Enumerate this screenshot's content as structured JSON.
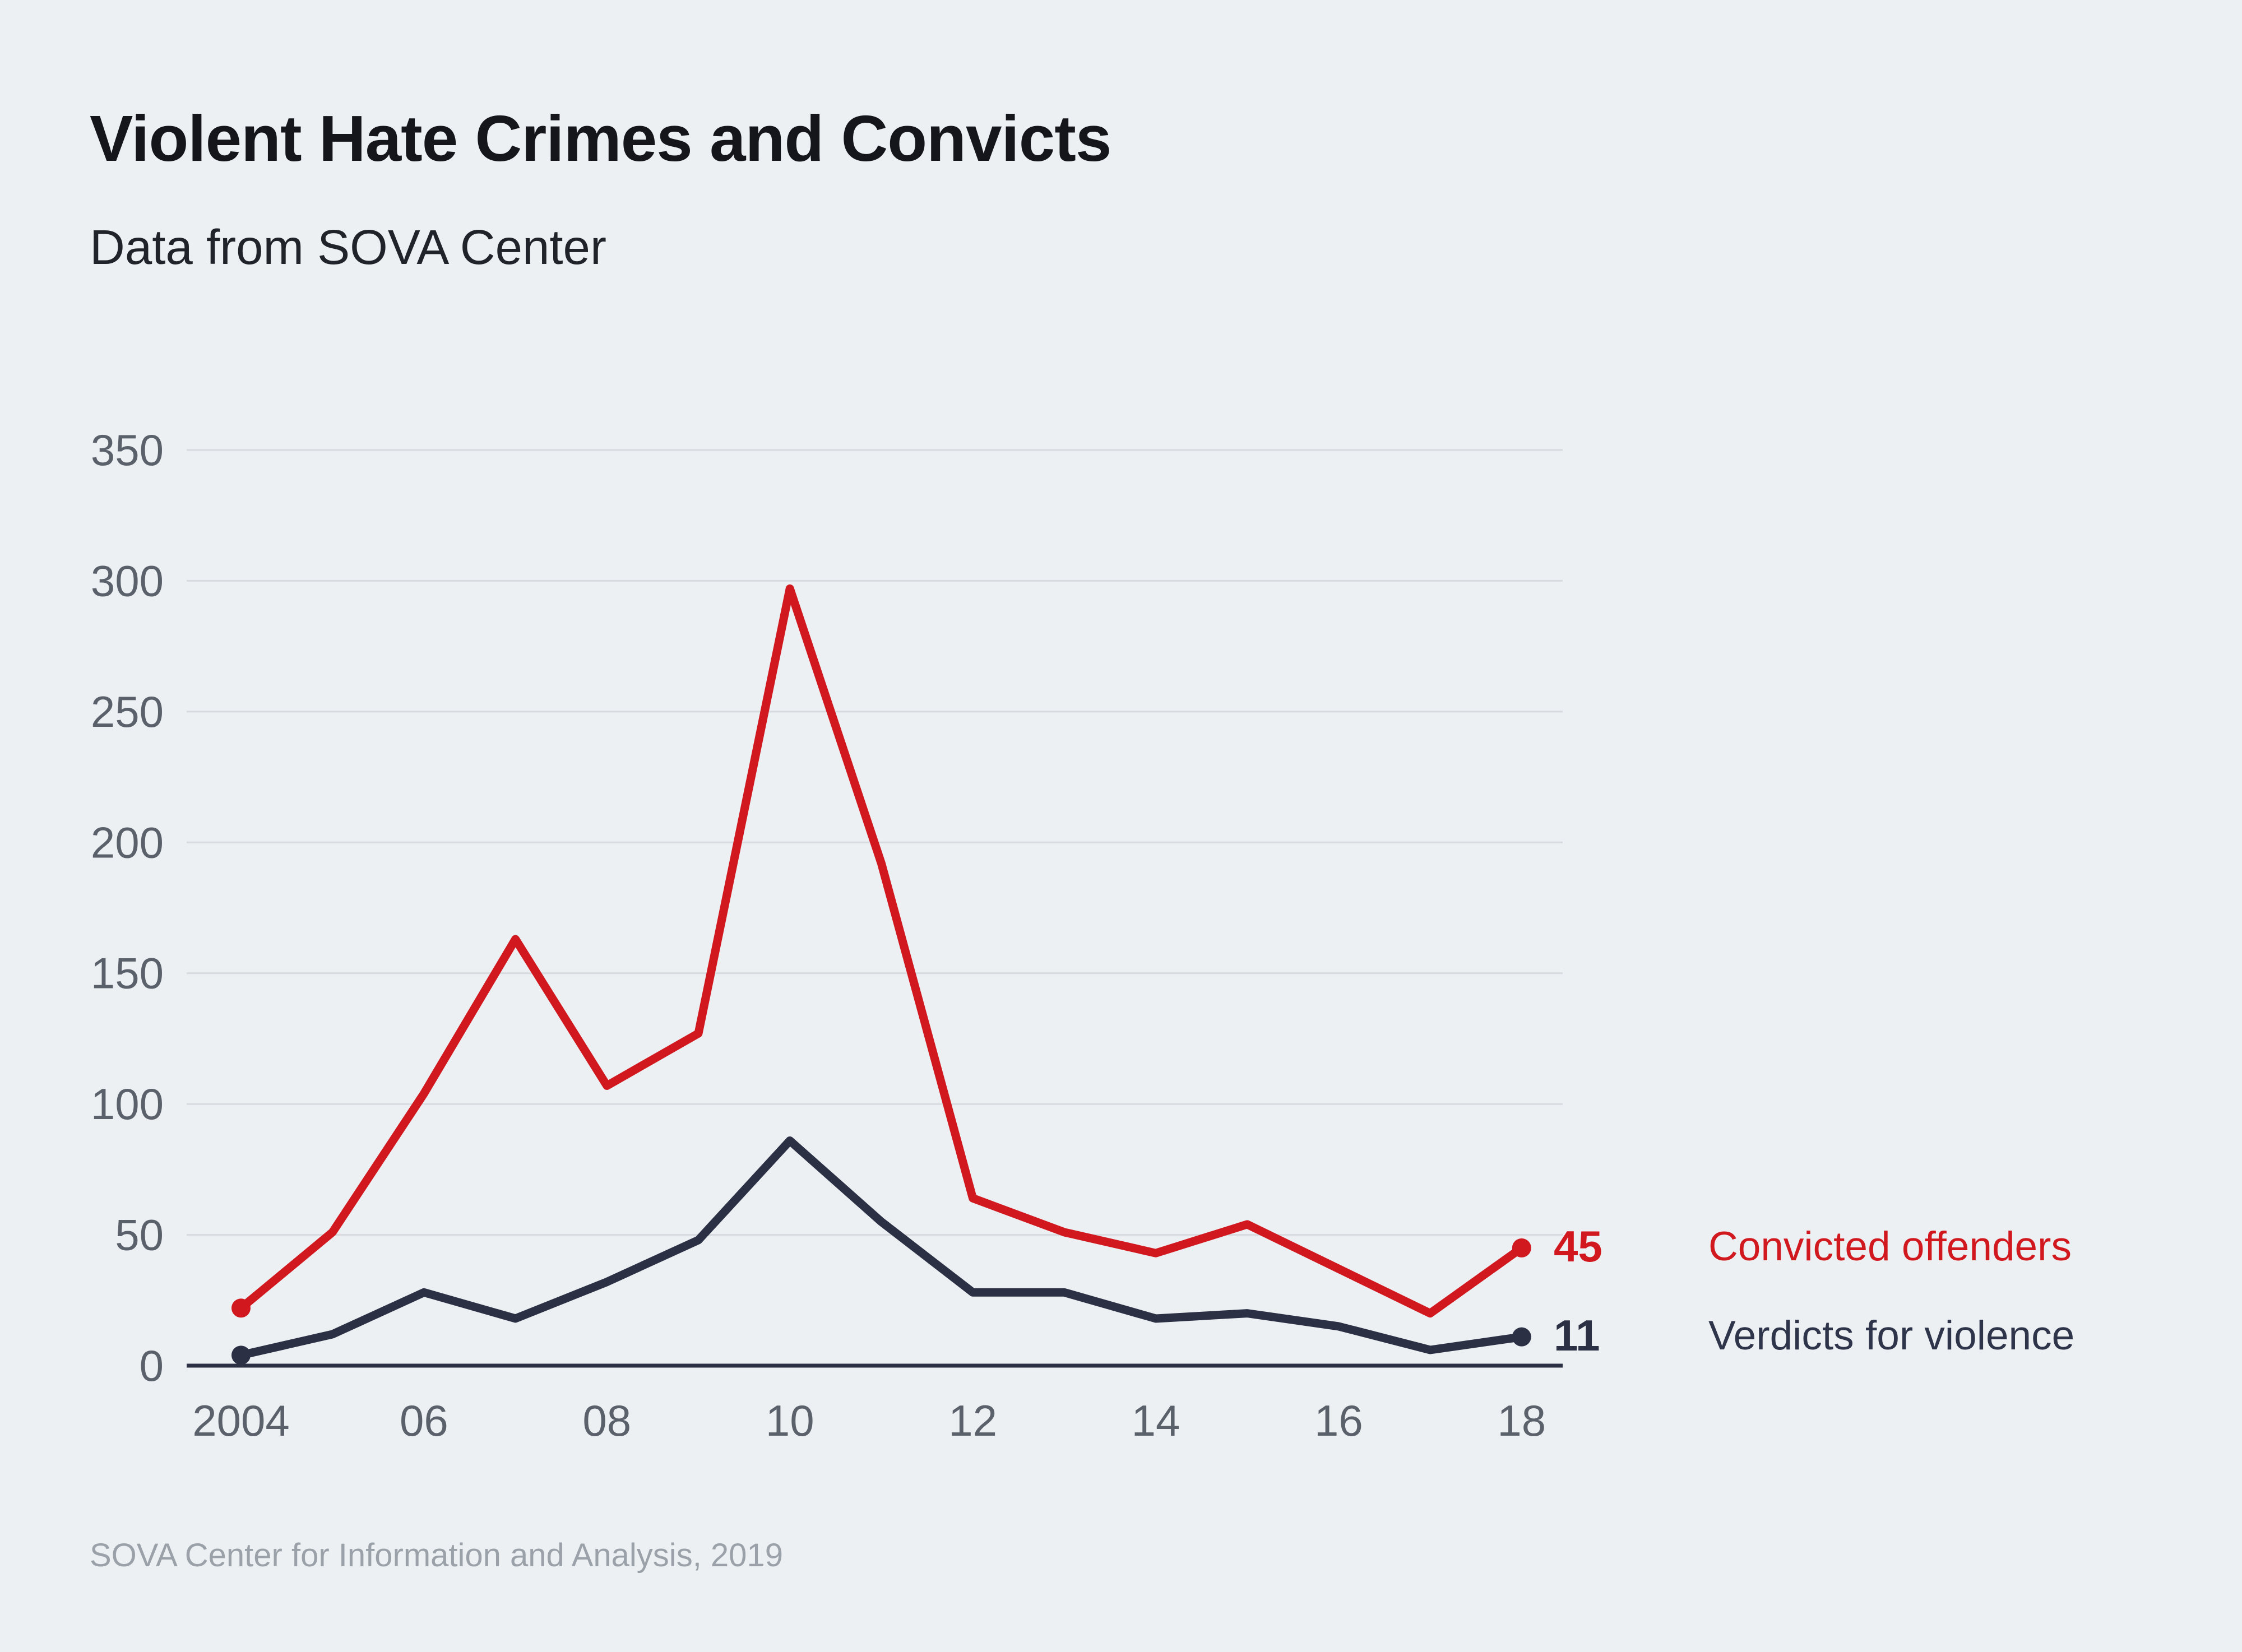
{
  "header": {
    "title": "Violent Hate Crimes and Convicts",
    "subtitle": "Data from SOVA Center"
  },
  "footer": {
    "source": "SOVA Center for Information and Analysis, 2019"
  },
  "chart_data": {
    "type": "line",
    "title": "Violent Hate Crimes and Convicts",
    "subtitle": "Data from SOVA Center",
    "x": [
      2004,
      2005,
      2006,
      2007,
      2008,
      2009,
      2010,
      2011,
      2012,
      2013,
      2014,
      2015,
      2016,
      2017,
      2018
    ],
    "x_tick_years": [
      2004,
      2006,
      2008,
      2010,
      2012,
      2014,
      2016,
      2018
    ],
    "x_tick_labels": [
      "2004",
      "06",
      "08",
      "10",
      "12",
      "14",
      "16",
      "18"
    ],
    "y_ticks": [
      0,
      50,
      100,
      150,
      200,
      250,
      300,
      350
    ],
    "y_tick_labels": [
      "0",
      "50",
      "100",
      "150",
      "200",
      "250",
      "300",
      "350"
    ],
    "ylim": [
      0,
      350
    ],
    "grid": "horizontal",
    "legend_position": "right of line ends",
    "series": [
      {
        "name": "Convicted offenders",
        "color": "#d2181f",
        "end_label": "45",
        "values": [
          22,
          51,
          104,
          163,
          107,
          127,
          297,
          192,
          64,
          51,
          43,
          54,
          37,
          20,
          45
        ]
      },
      {
        "name": "Verdicts for violence",
        "color": "#2b3044",
        "end_label": "11",
        "values": [
          4,
          12,
          28,
          18,
          32,
          48,
          86,
          55,
          28,
          28,
          18,
          20,
          15,
          6,
          11
        ]
      }
    ]
  },
  "colors": {
    "background": "#ecf0f3",
    "gridline": "#d7dade",
    "axis_line": "#2b3044",
    "tick_label": "#5b616b",
    "title": "#14161b",
    "subtitle": "#202329",
    "source": "#9aa1a8",
    "series_red": "#d2181f",
    "series_navy": "#2b3044"
  }
}
